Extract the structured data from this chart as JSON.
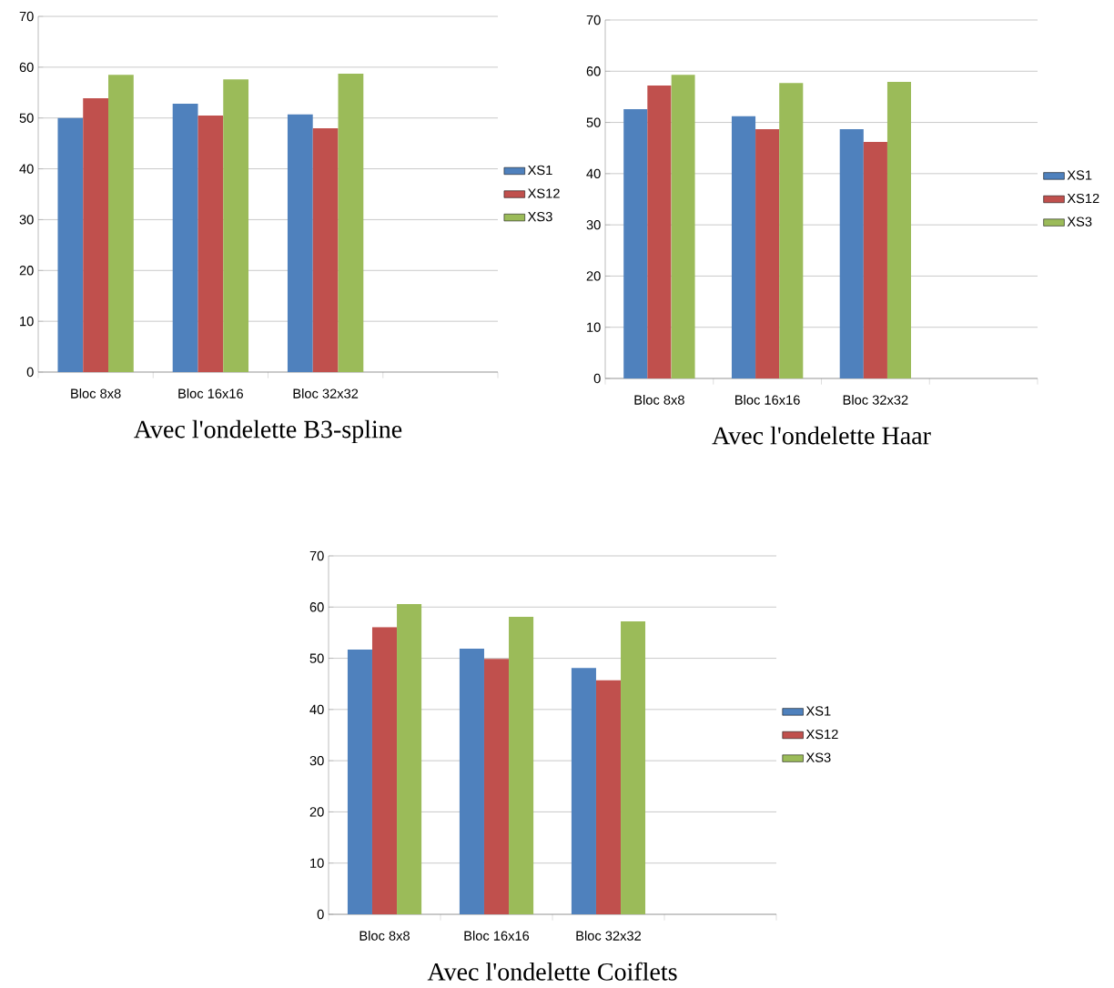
{
  "chart_data": [
    {
      "type": "bar",
      "title": "Avec l'ondelette B3-spline",
      "categories": [
        "Bloc 8x8",
        "Bloc 16x16",
        "Bloc 32x32",
        null
      ],
      "series": [
        {
          "name": "XS1",
          "color": "#4f81bd",
          "values": [
            50,
            52.8,
            50.7,
            null
          ]
        },
        {
          "name": "XS12",
          "color": "#c0504d",
          "values": [
            53.9,
            50.5,
            48,
            null
          ]
        },
        {
          "name": "XS3",
          "color": "#9bbb59",
          "values": [
            58.5,
            57.6,
            58.7,
            null
          ]
        }
      ],
      "ylim": [
        0,
        70
      ],
      "yticks": [
        0,
        10,
        20,
        30,
        40,
        50,
        60,
        70
      ],
      "grid": "y",
      "legend": "right"
    },
    {
      "type": "bar",
      "title": "Avec l'ondelette Haar",
      "categories": [
        "Bloc 8x8",
        "Bloc 16x16",
        "Bloc 32x32",
        null
      ],
      "series": [
        {
          "name": "XS1",
          "color": "#4f81bd",
          "values": [
            52.6,
            51.2,
            48.7,
            null
          ]
        },
        {
          "name": "XS12",
          "color": "#c0504d",
          "values": [
            57.2,
            48.7,
            46.2,
            null
          ]
        },
        {
          "name": "XS3",
          "color": "#9bbb59",
          "values": [
            59.3,
            57.7,
            57.9,
            null
          ]
        }
      ],
      "ylim": [
        0,
        70
      ],
      "yticks": [
        0,
        10,
        20,
        30,
        40,
        50,
        60,
        70
      ],
      "grid": "y",
      "legend": "right"
    },
    {
      "type": "bar",
      "title": "Avec l'ondelette Coiflets",
      "categories": [
        "Bloc 8x8",
        "Bloc 16x16",
        "Bloc 32x32",
        null
      ],
      "series": [
        {
          "name": "XS1",
          "color": "#4f81bd",
          "values": [
            51.7,
            51.9,
            48.1,
            null
          ]
        },
        {
          "name": "XS12",
          "color": "#c0504d",
          "values": [
            56.1,
            49.9,
            45.7,
            null
          ]
        },
        {
          "name": "XS3",
          "color": "#9bbb59",
          "values": [
            60.6,
            58.1,
            57.2,
            null
          ]
        }
      ],
      "ylim": [
        0,
        70
      ],
      "yticks": [
        0,
        10,
        20,
        30,
        40,
        50,
        60,
        70
      ],
      "grid": "y",
      "legend": "right"
    }
  ]
}
